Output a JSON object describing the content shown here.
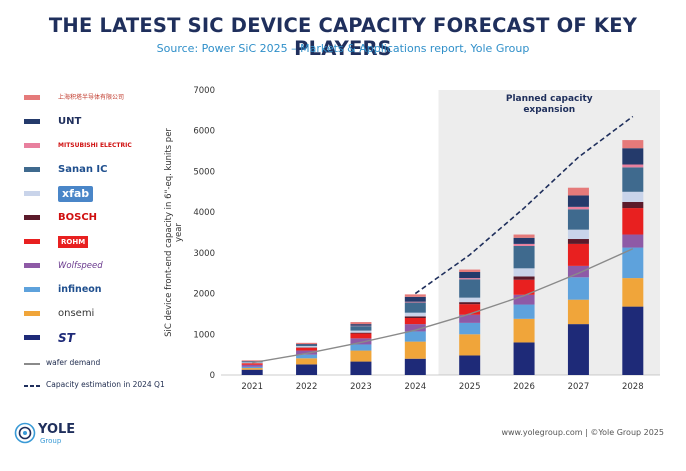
{
  "header": {
    "title": "THE LATEST SIC DEVICE CAPACITY FORECAST OF KEY PLAYERS",
    "subtitle": "Source: Power SiC 2025 – Markets & Applications report, Yole Group"
  },
  "legend": {
    "players": [
      {
        "label": "上海积塔半导体有限公司",
        "icon": "gta-logo",
        "color": "#e57a7a"
      },
      {
        "label": "UNT",
        "icon": "unt-logo",
        "color": "#243a6b"
      },
      {
        "label": "MITSUBISHI ELECTRIC",
        "icon": "mitsubishi-logo",
        "color": "#e8809e"
      },
      {
        "label": "Sanan IC",
        "icon": "sanan-logo",
        "color": "#3f6a8e"
      },
      {
        "label": "xfab",
        "icon": "xfab-logo",
        "color": "#c9d4ea"
      },
      {
        "label": "BOSCH",
        "icon": "bosch-logo",
        "color": "#5b1a2a"
      },
      {
        "label": "ROHM",
        "icon": "rohm-logo",
        "color": "#e82020"
      },
      {
        "label": "Wolfspeed",
        "icon": "wolfspeed-logo",
        "color": "#8e5aa6"
      },
      {
        "label": "infineon",
        "icon": "infineon-logo",
        "color": "#5ea2dc"
      },
      {
        "label": "onsemi",
        "icon": "onsemi-logo",
        "color": "#f0a53a"
      },
      {
        "label": "ST",
        "icon": "st-logo",
        "color": "#1e2a78"
      }
    ],
    "wafer_demand": "wafer demand",
    "capacity_estimation": "Capacity estimation in 2024 Q1"
  },
  "footer": {
    "brand": "YOLE",
    "brand_sub": "Group",
    "credit": "www.yolegroup.com | ©Yole Group 2025"
  },
  "chart_data": {
    "type": "bar",
    "stacked": true,
    "categories": [
      "2021",
      "2022",
      "2023",
      "2024",
      "2025",
      "2026",
      "2027",
      "2028"
    ],
    "ylabel": "SiC device front-end capacity in 6\"-eq. kunits per year",
    "ylim": [
      0,
      7000
    ],
    "yticks": [
      0,
      1000,
      2000,
      3000,
      4000,
      5000,
      6000,
      7000
    ],
    "grid": false,
    "annotation": "Planned capacity expansion",
    "shaded_from": "2025",
    "series": [
      {
        "name": "ST",
        "color": "#1e2a78",
        "values": [
          130,
          260,
          330,
          400,
          480,
          800,
          1250,
          1680
        ]
      },
      {
        "name": "onsemi",
        "color": "#f0a53a",
        "values": [
          40,
          150,
          270,
          420,
          520,
          580,
          600,
          700
        ]
      },
      {
        "name": "Infineon",
        "color": "#5ea2dc",
        "values": [
          30,
          90,
          150,
          250,
          280,
          350,
          550,
          750
        ]
      },
      {
        "name": "Wolfspeed",
        "color": "#8e5aa6",
        "values": [
          50,
          100,
          150,
          180,
          200,
          240,
          280,
          320
        ]
      },
      {
        "name": "ROHM",
        "color": "#e82020",
        "values": [
          40,
          70,
          120,
          150,
          260,
          370,
          540,
          650
        ]
      },
      {
        "name": "BOSCH",
        "color": "#5b1a2a",
        "values": [
          0,
          10,
          20,
          40,
          50,
          80,
          120,
          150
        ]
      },
      {
        "name": "X-FAB",
        "color": "#c9d4ea",
        "values": [
          20,
          30,
          50,
          90,
          110,
          200,
          230,
          250
        ]
      },
      {
        "name": "Sanan IC",
        "color": "#3f6a8e",
        "values": [
          20,
          30,
          110,
          250,
          450,
          550,
          500,
          600
        ]
      },
      {
        "name": "Mitsubishi Electric",
        "color": "#e8809e",
        "values": [
          0,
          0,
          10,
          20,
          30,
          50,
          60,
          70
        ]
      },
      {
        "name": "UNT",
        "color": "#243a6b",
        "values": [
          10,
          20,
          40,
          120,
          150,
          150,
          280,
          400
        ]
      },
      {
        "name": "GTA",
        "color": "#e57a7a",
        "values": [
          20,
          30,
          50,
          60,
          60,
          80,
          190,
          200
        ]
      }
    ],
    "lines": [
      {
        "name": "wafer demand",
        "color": "#8a8a8a",
        "style": "solid",
        "x": [
          "2021",
          "2022",
          "2023",
          "2024",
          "2025",
          "2026",
          "2027",
          "2028"
        ],
        "values": [
          300,
          530,
          800,
          1100,
          1500,
          1950,
          2500,
          3100
        ]
      },
      {
        "name": "Capacity estimation in 2024 Q1",
        "color": "#1f2f5c",
        "style": "dashed",
        "x": [
          "2024",
          "2025",
          "2026",
          "2027",
          "2028"
        ],
        "values": [
          2000,
          2950,
          4100,
          5350,
          6350
        ]
      }
    ]
  }
}
